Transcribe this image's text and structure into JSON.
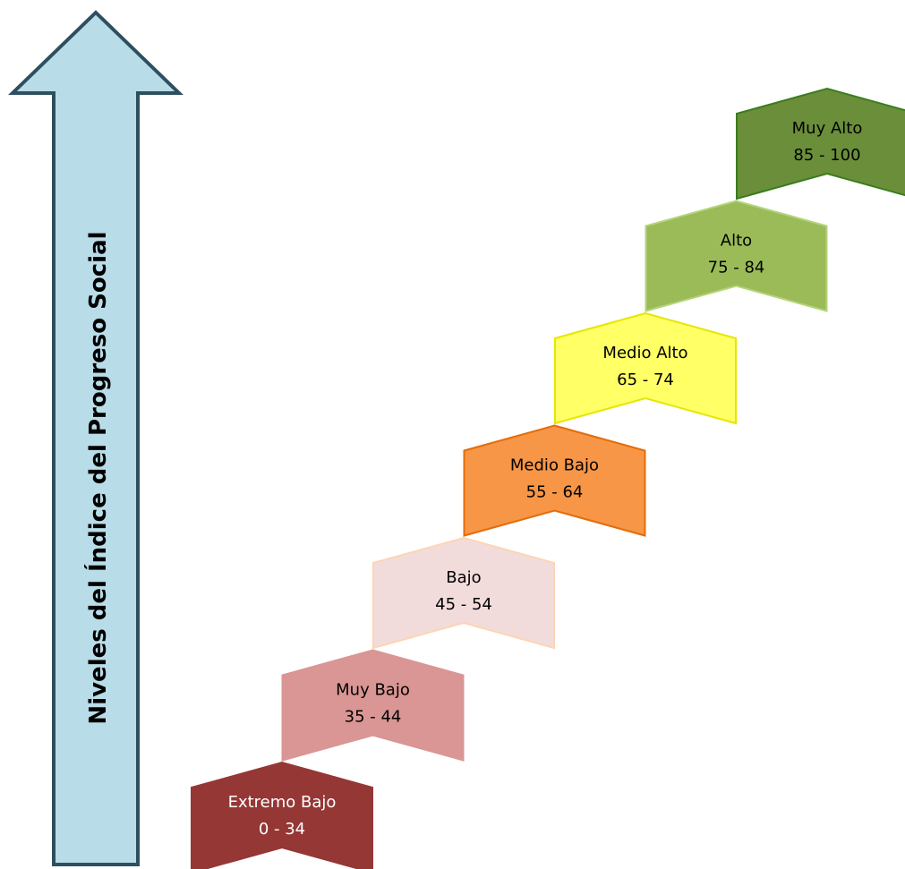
{
  "axis_title": "Niveles del Índice del Progreso Social",
  "arrow": {
    "fill": "#b9dde8",
    "stroke": "#2f4f5f"
  },
  "levels": [
    {
      "name": "Extremo Bajo",
      "range": "0 - 34",
      "fill": "#953735",
      "stroke": "#953735",
      "text_color": "#ffffff"
    },
    {
      "name": "Muy Bajo",
      "range": "35 - 44",
      "fill": "#d99694",
      "stroke": "#d99694",
      "text_color": "#000000"
    },
    {
      "name": "Bajo",
      "range": "45 - 54",
      "fill": "#f2dcdb",
      "stroke": "#fcd5b4",
      "text_color": "#000000"
    },
    {
      "name": "Medio Bajo",
      "range": "55 - 64",
      "fill": "#f79646",
      "stroke": "#e46c0a",
      "text_color": "#000000"
    },
    {
      "name": "Medio Alto",
      "range": "65 - 74",
      "fill": "#ffff66",
      "stroke": "#e6e600",
      "text_color": "#000000"
    },
    {
      "name": "Alto",
      "range": "75 - 84",
      "fill": "#9bbb59",
      "stroke": "#b3d47a",
      "text_color": "#000000"
    },
    {
      "name": "Muy Alto",
      "range": "85 - 100",
      "fill": "#6b8e3a",
      "stroke": "#3a7d1e",
      "text_color": "#000000"
    }
  ]
}
